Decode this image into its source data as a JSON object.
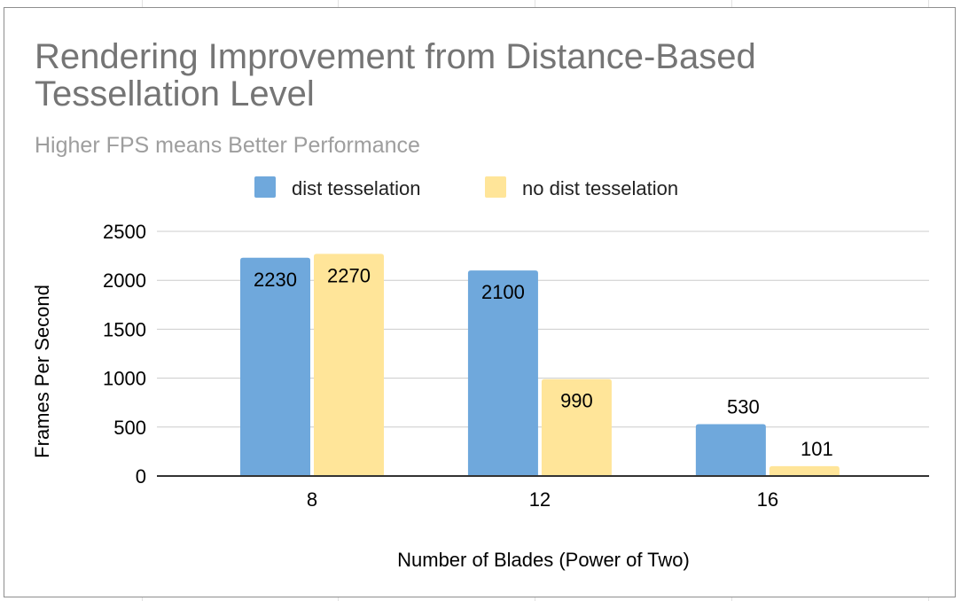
{
  "chart_data": {
    "type": "bar",
    "title": "Rendering Improvement from Distance-Based Tessellation Level",
    "subtitle": "Higher FPS means Better Performance",
    "xlabel": "Number of Blades (Power of Two)",
    "ylabel": "Frames Per Second",
    "categories": [
      "8",
      "12",
      "16"
    ],
    "series": [
      {
        "name": "dist tesselation",
        "values": [
          2230,
          2100,
          530
        ],
        "color": "#6fa8dc"
      },
      {
        "name": "no dist tesselation",
        "values": [
          2270,
          990,
          101
        ],
        "color": "#ffe599"
      }
    ],
    "ylim": [
      0,
      2500
    ],
    "yticks": [
      0,
      500,
      1000,
      1500,
      2000,
      2500
    ],
    "grid": true,
    "legend_position": "top",
    "data_labels": true
  }
}
